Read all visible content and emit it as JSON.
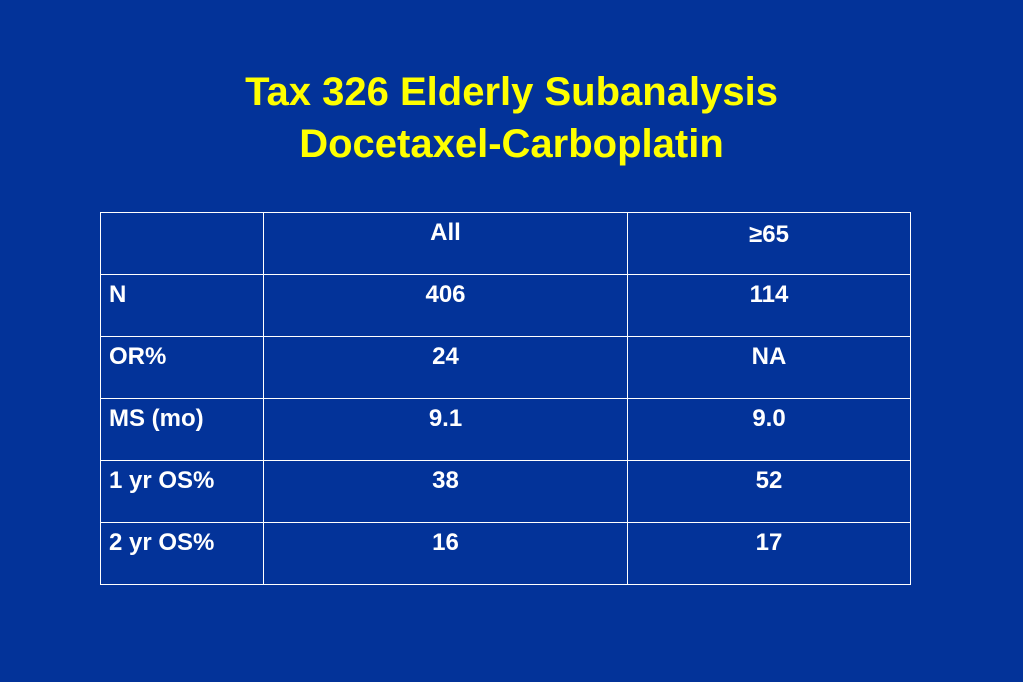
{
  "slide": {
    "title_line1": "Tax 326 Elderly Subanalysis",
    "title_line2": "Docetaxel-Carboplatin",
    "colors": {
      "background": "#003399",
      "title": "#ffff00",
      "text": "#ffffff"
    }
  },
  "table": {
    "headers": [
      "",
      "All",
      "≥65"
    ],
    "rows": [
      {
        "label": "N",
        "all": "406",
        "age65": "114"
      },
      {
        "label": "OR%",
        "all": "24",
        "age65": "NA"
      },
      {
        "label": "MS (mo)",
        "all": "9.1",
        "age65": "9.0"
      },
      {
        "label": "1 yr OS%",
        "all": "38",
        "age65": "52"
      },
      {
        "label": "2 yr OS%",
        "all": "16",
        "age65": "17"
      }
    ]
  }
}
